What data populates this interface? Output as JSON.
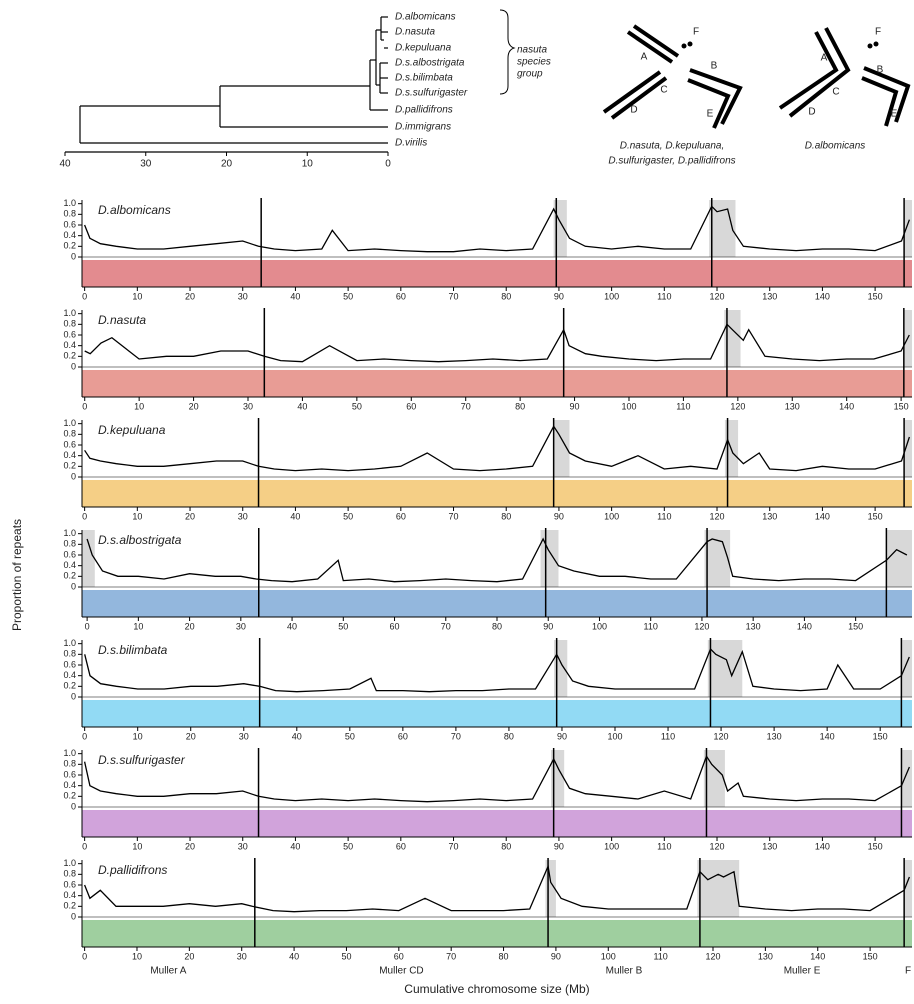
{
  "tree": {
    "taxa": [
      "D.albomicans",
      "D.nasuta",
      "D.kepuluana",
      "D.s.albostrigata",
      "D.s.bilimbata",
      "D.s.sulfurigaster",
      "D.pallidifrons",
      "D.immigrans",
      "D.virilis"
    ],
    "group_label": [
      "nasuta",
      "species",
      "group"
    ],
    "axis_ticks": [
      40,
      30,
      20,
      10,
      0
    ]
  },
  "karyotypes": [
    {
      "arms": [
        "A",
        "B",
        "C",
        "D",
        "E",
        "F"
      ],
      "caption": [
        "D.nasuta, D.kepuluana,",
        "D.sulfurigaster, D.pallidifrons"
      ]
    },
    {
      "arms": [
        "A",
        "B",
        "C",
        "D",
        "E",
        "F"
      ],
      "caption": [
        "D.albomicans"
      ]
    }
  ],
  "y_label": "Proportion of repeats",
  "x_label": "Cumulative chromosome size (Mb)",
  "element_labels": [
    "Muller A",
    "Muller CD",
    "Muller B",
    "Muller E",
    "F"
  ],
  "chart_data": [
    {
      "type": "line",
      "title": "D.albomicans",
      "color": "#d9646a",
      "xlim": [
        -0.5,
        157
      ],
      "ylim": [
        0,
        1.05
      ],
      "yticks": [
        0,
        0.2,
        0.4,
        0.6,
        0.8,
        {
          "value": 1,
          "label": "1.0"
        }
      ],
      "xticks": [
        0,
        10,
        20,
        30,
        40,
        50,
        60,
        70,
        80,
        90,
        100,
        110,
        120,
        130,
        140,
        150
      ],
      "boundaries": [
        33.5,
        89.5,
        119,
        155.5
      ],
      "shaded": [
        [
          89,
          91.5
        ],
        [
          118.5,
          123.5
        ],
        [
          155.5,
          157
        ]
      ],
      "x": [
        0,
        1,
        3,
        6,
        10,
        15,
        20,
        25,
        30,
        33,
        36,
        40,
        45,
        47,
        50,
        55,
        60,
        65,
        70,
        75,
        80,
        85,
        89,
        90,
        92,
        95,
        100,
        105,
        110,
        115,
        119,
        120,
        122,
        123,
        125,
        130,
        135,
        140,
        145,
        150,
        155,
        156.5
      ],
      "values": [
        0.6,
        0.35,
        0.25,
        0.2,
        0.15,
        0.15,
        0.2,
        0.25,
        0.3,
        0.2,
        0.15,
        0.12,
        0.15,
        0.5,
        0.12,
        0.15,
        0.12,
        0.1,
        0.1,
        0.15,
        0.12,
        0.15,
        0.9,
        0.7,
        0.35,
        0.2,
        0.15,
        0.2,
        0.15,
        0.15,
        0.95,
        0.85,
        0.9,
        0.5,
        0.2,
        0.15,
        0.12,
        0.15,
        0.15,
        0.12,
        0.3,
        0.7
      ]
    },
    {
      "type": "line",
      "title": "D.nasuta",
      "color": "#e07b72",
      "xlim": [
        -0.5,
        152
      ],
      "ylim": [
        0,
        1.05
      ],
      "yticks": [
        0,
        0.2,
        0.4,
        0.6,
        0.8,
        {
          "value": 1,
          "label": "1.0"
        }
      ],
      "xticks": [
        0,
        10,
        20,
        30,
        40,
        50,
        60,
        70,
        80,
        90,
        100,
        110,
        120,
        130,
        140,
        150
      ],
      "boundaries": [
        33,
        88,
        118,
        150.5
      ],
      "shaded": [
        [
          117.5,
          120.5
        ],
        [
          150.5,
          152
        ]
      ],
      "x": [
        0,
        1,
        3,
        5,
        10,
        15,
        20,
        25,
        30,
        33,
        36,
        40,
        45,
        50,
        55,
        60,
        65,
        70,
        75,
        80,
        85,
        88,
        89,
        92,
        95,
        100,
        105,
        110,
        115,
        118,
        119,
        121,
        122,
        125,
        130,
        135,
        140,
        145,
        150,
        151.5
      ],
      "values": [
        0.3,
        0.25,
        0.45,
        0.55,
        0.15,
        0.2,
        0.2,
        0.3,
        0.3,
        0.2,
        0.12,
        0.1,
        0.4,
        0.12,
        0.15,
        0.12,
        0.1,
        0.12,
        0.15,
        0.12,
        0.15,
        0.7,
        0.4,
        0.25,
        0.2,
        0.15,
        0.12,
        0.15,
        0.15,
        0.8,
        0.7,
        0.5,
        0.7,
        0.2,
        0.15,
        0.12,
        0.15,
        0.15,
        0.3,
        0.6
      ]
    },
    {
      "type": "line",
      "title": "D.kepuluana",
      "color": "#f2bf5e",
      "xlim": [
        -0.5,
        157
      ],
      "ylim": [
        0,
        1.05
      ],
      "yticks": [
        0,
        0.2,
        0.4,
        0.6,
        0.8,
        {
          "value": 1,
          "label": "1.0"
        }
      ],
      "xticks": [
        0,
        10,
        20,
        30,
        40,
        50,
        60,
        70,
        80,
        90,
        100,
        110,
        120,
        130,
        140,
        150
      ],
      "boundaries": [
        33,
        89,
        122,
        155.5
      ],
      "shaded": [
        [
          89,
          92
        ],
        [
          121.5,
          124
        ],
        [
          155.5,
          157
        ]
      ],
      "x": [
        0,
        1,
        3,
        6,
        10,
        15,
        20,
        25,
        30,
        33,
        36,
        40,
        45,
        50,
        55,
        60,
        65,
        70,
        75,
        80,
        85,
        89,
        90,
        92,
        95,
        100,
        105,
        110,
        115,
        120,
        122,
        123,
        125,
        128,
        130,
        135,
        140,
        145,
        150,
        155,
        156.5
      ],
      "values": [
        0.5,
        0.35,
        0.3,
        0.25,
        0.2,
        0.2,
        0.25,
        0.3,
        0.3,
        0.2,
        0.15,
        0.12,
        0.15,
        0.12,
        0.15,
        0.2,
        0.45,
        0.15,
        0.12,
        0.15,
        0.2,
        0.95,
        0.8,
        0.45,
        0.3,
        0.2,
        0.4,
        0.15,
        0.2,
        0.15,
        0.7,
        0.45,
        0.25,
        0.45,
        0.15,
        0.12,
        0.2,
        0.15,
        0.15,
        0.3,
        0.75
      ]
    },
    {
      "type": "line",
      "title": "D.s.albostrigata",
      "color": "#6f9fd2",
      "xlim": [
        -1,
        161
      ],
      "ylim": [
        0,
        1.05
      ],
      "yticks": [
        0,
        0.2,
        0.4,
        0.6,
        0.8,
        {
          "value": 1,
          "label": "1.0"
        }
      ],
      "xticks": [
        0,
        10,
        20,
        30,
        40,
        50,
        60,
        70,
        80,
        90,
        100,
        110,
        120,
        130,
        140,
        150
      ],
      "boundaries": [
        33.5,
        89.5,
        121,
        156
      ],
      "shaded": [
        [
          -1,
          1.5
        ],
        [
          88.5,
          92
        ],
        [
          120.5,
          125.5
        ],
        [
          156,
          161
        ]
      ],
      "x": [
        0,
        1,
        3,
        6,
        10,
        15,
        20,
        25,
        30,
        33,
        36,
        40,
        45,
        49,
        50,
        55,
        60,
        65,
        70,
        75,
        80,
        85,
        89,
        90,
        92,
        95,
        100,
        105,
        110,
        115,
        121,
        122,
        124,
        125,
        126,
        130,
        135,
        140,
        145,
        150,
        156,
        158,
        160
      ],
      "values": [
        0.9,
        0.6,
        0.3,
        0.2,
        0.2,
        0.15,
        0.25,
        0.2,
        0.2,
        0.15,
        0.12,
        0.1,
        0.15,
        0.5,
        0.12,
        0.15,
        0.1,
        0.12,
        0.15,
        0.12,
        0.1,
        0.15,
        0.9,
        0.7,
        0.4,
        0.3,
        0.2,
        0.2,
        0.15,
        0.15,
        0.85,
        0.9,
        0.85,
        0.55,
        0.2,
        0.15,
        0.12,
        0.15,
        0.15,
        0.12,
        0.5,
        0.7,
        0.6
      ]
    },
    {
      "type": "line",
      "title": "D.s.bilimbata",
      "color": "#6ecdf0",
      "xlim": [
        -0.5,
        156
      ],
      "ylim": [
        0,
        1.05
      ],
      "yticks": [
        0,
        0.2,
        0.4,
        0.6,
        0.8,
        {
          "value": 1,
          "label": "1.0"
        }
      ],
      "xticks": [
        0,
        10,
        20,
        30,
        40,
        50,
        60,
        70,
        80,
        90,
        100,
        110,
        120,
        130,
        140,
        150
      ],
      "boundaries": [
        33,
        89,
        118,
        154
      ],
      "shaded": [
        [
          88.5,
          91
        ],
        [
          117.5,
          124
        ],
        [
          154,
          156
        ]
      ],
      "x": [
        0,
        1,
        3,
        6,
        10,
        15,
        20,
        25,
        30,
        33,
        36,
        40,
        45,
        50,
        54,
        55,
        60,
        65,
        70,
        75,
        80,
        85,
        89,
        90,
        92,
        95,
        100,
        105,
        110,
        115,
        118,
        119,
        121,
        122,
        124,
        126,
        130,
        135,
        140,
        142,
        145,
        150,
        154,
        155.5
      ],
      "values": [
        0.8,
        0.4,
        0.25,
        0.2,
        0.15,
        0.15,
        0.2,
        0.2,
        0.25,
        0.2,
        0.12,
        0.1,
        0.12,
        0.15,
        0.35,
        0.12,
        0.12,
        0.1,
        0.12,
        0.12,
        0.15,
        0.15,
        0.8,
        0.6,
        0.3,
        0.2,
        0.15,
        0.15,
        0.15,
        0.15,
        0.9,
        0.8,
        0.7,
        0.4,
        0.85,
        0.2,
        0.15,
        0.12,
        0.15,
        0.6,
        0.15,
        0.15,
        0.4,
        0.75
      ]
    },
    {
      "type": "line",
      "title": "D.s.sulfurigaster",
      "color": "#c184cf",
      "xlim": [
        -0.5,
        157
      ],
      "ylim": [
        0,
        1.05
      ],
      "yticks": [
        0,
        0.2,
        0.4,
        0.6,
        0.8,
        {
          "value": 1,
          "label": "1.0"
        }
      ],
      "xticks": [
        0,
        10,
        20,
        30,
        40,
        50,
        60,
        70,
        80,
        90,
        100,
        110,
        120,
        130,
        140,
        150
      ],
      "boundaries": [
        33,
        89,
        118,
        155
      ],
      "shaded": [
        [
          88.5,
          91
        ],
        [
          117.5,
          121.5
        ],
        [
          155,
          157
        ]
      ],
      "x": [
        0,
        1,
        3,
        6,
        10,
        15,
        20,
        25,
        30,
        33,
        36,
        40,
        45,
        50,
        55,
        60,
        65,
        70,
        75,
        80,
        85,
        89,
        90,
        92,
        95,
        100,
        105,
        110,
        115,
        118,
        119,
        121,
        122,
        124,
        125,
        130,
        135,
        140,
        145,
        150,
        155,
        156.5
      ],
      "values": [
        0.85,
        0.4,
        0.3,
        0.25,
        0.2,
        0.2,
        0.25,
        0.25,
        0.3,
        0.2,
        0.15,
        0.12,
        0.15,
        0.12,
        0.15,
        0.12,
        0.1,
        0.12,
        0.15,
        0.12,
        0.15,
        0.9,
        0.7,
        0.35,
        0.25,
        0.2,
        0.15,
        0.3,
        0.15,
        0.95,
        0.8,
        0.6,
        0.3,
        0.45,
        0.2,
        0.15,
        0.12,
        0.15,
        0.15,
        0.12,
        0.4,
        0.75
      ]
    },
    {
      "type": "line",
      "title": "D.pallidifrons",
      "color": "#7fbf7f",
      "xlim": [
        -0.5,
        158
      ],
      "ylim": [
        0,
        1.05
      ],
      "yticks": [
        0,
        0.2,
        0.4,
        0.6,
        0.8,
        {
          "value": 1,
          "label": "1.0"
        }
      ],
      "xticks": [
        0,
        10,
        20,
        30,
        40,
        50,
        60,
        70,
        80,
        90,
        100,
        110,
        120,
        130,
        140,
        150
      ],
      "boundaries": [
        32.5,
        88.5,
        117.5,
        156.5
      ],
      "shaded": [
        [
          88,
          90
        ],
        [
          117,
          125
        ],
        [
          156.5,
          158
        ]
      ],
      "x": [
        0,
        1,
        3,
        6,
        10,
        15,
        20,
        25,
        30,
        32,
        36,
        40,
        45,
        50,
        55,
        60,
        65,
        70,
        75,
        80,
        85,
        88.5,
        89,
        91,
        95,
        100,
        105,
        110,
        115,
        117.5,
        119,
        121,
        122,
        124,
        125,
        130,
        135,
        140,
        145,
        150,
        156.5,
        157.5
      ],
      "values": [
        0.6,
        0.35,
        0.5,
        0.2,
        0.2,
        0.2,
        0.25,
        0.2,
        0.25,
        0.2,
        0.12,
        0.1,
        0.12,
        0.12,
        0.15,
        0.12,
        0.35,
        0.12,
        0.12,
        0.12,
        0.15,
        0.95,
        0.65,
        0.35,
        0.2,
        0.15,
        0.15,
        0.15,
        0.15,
        0.85,
        0.7,
        0.8,
        0.75,
        0.85,
        0.2,
        0.15,
        0.12,
        0.15,
        0.15,
        0.12,
        0.5,
        0.75
      ]
    }
  ]
}
